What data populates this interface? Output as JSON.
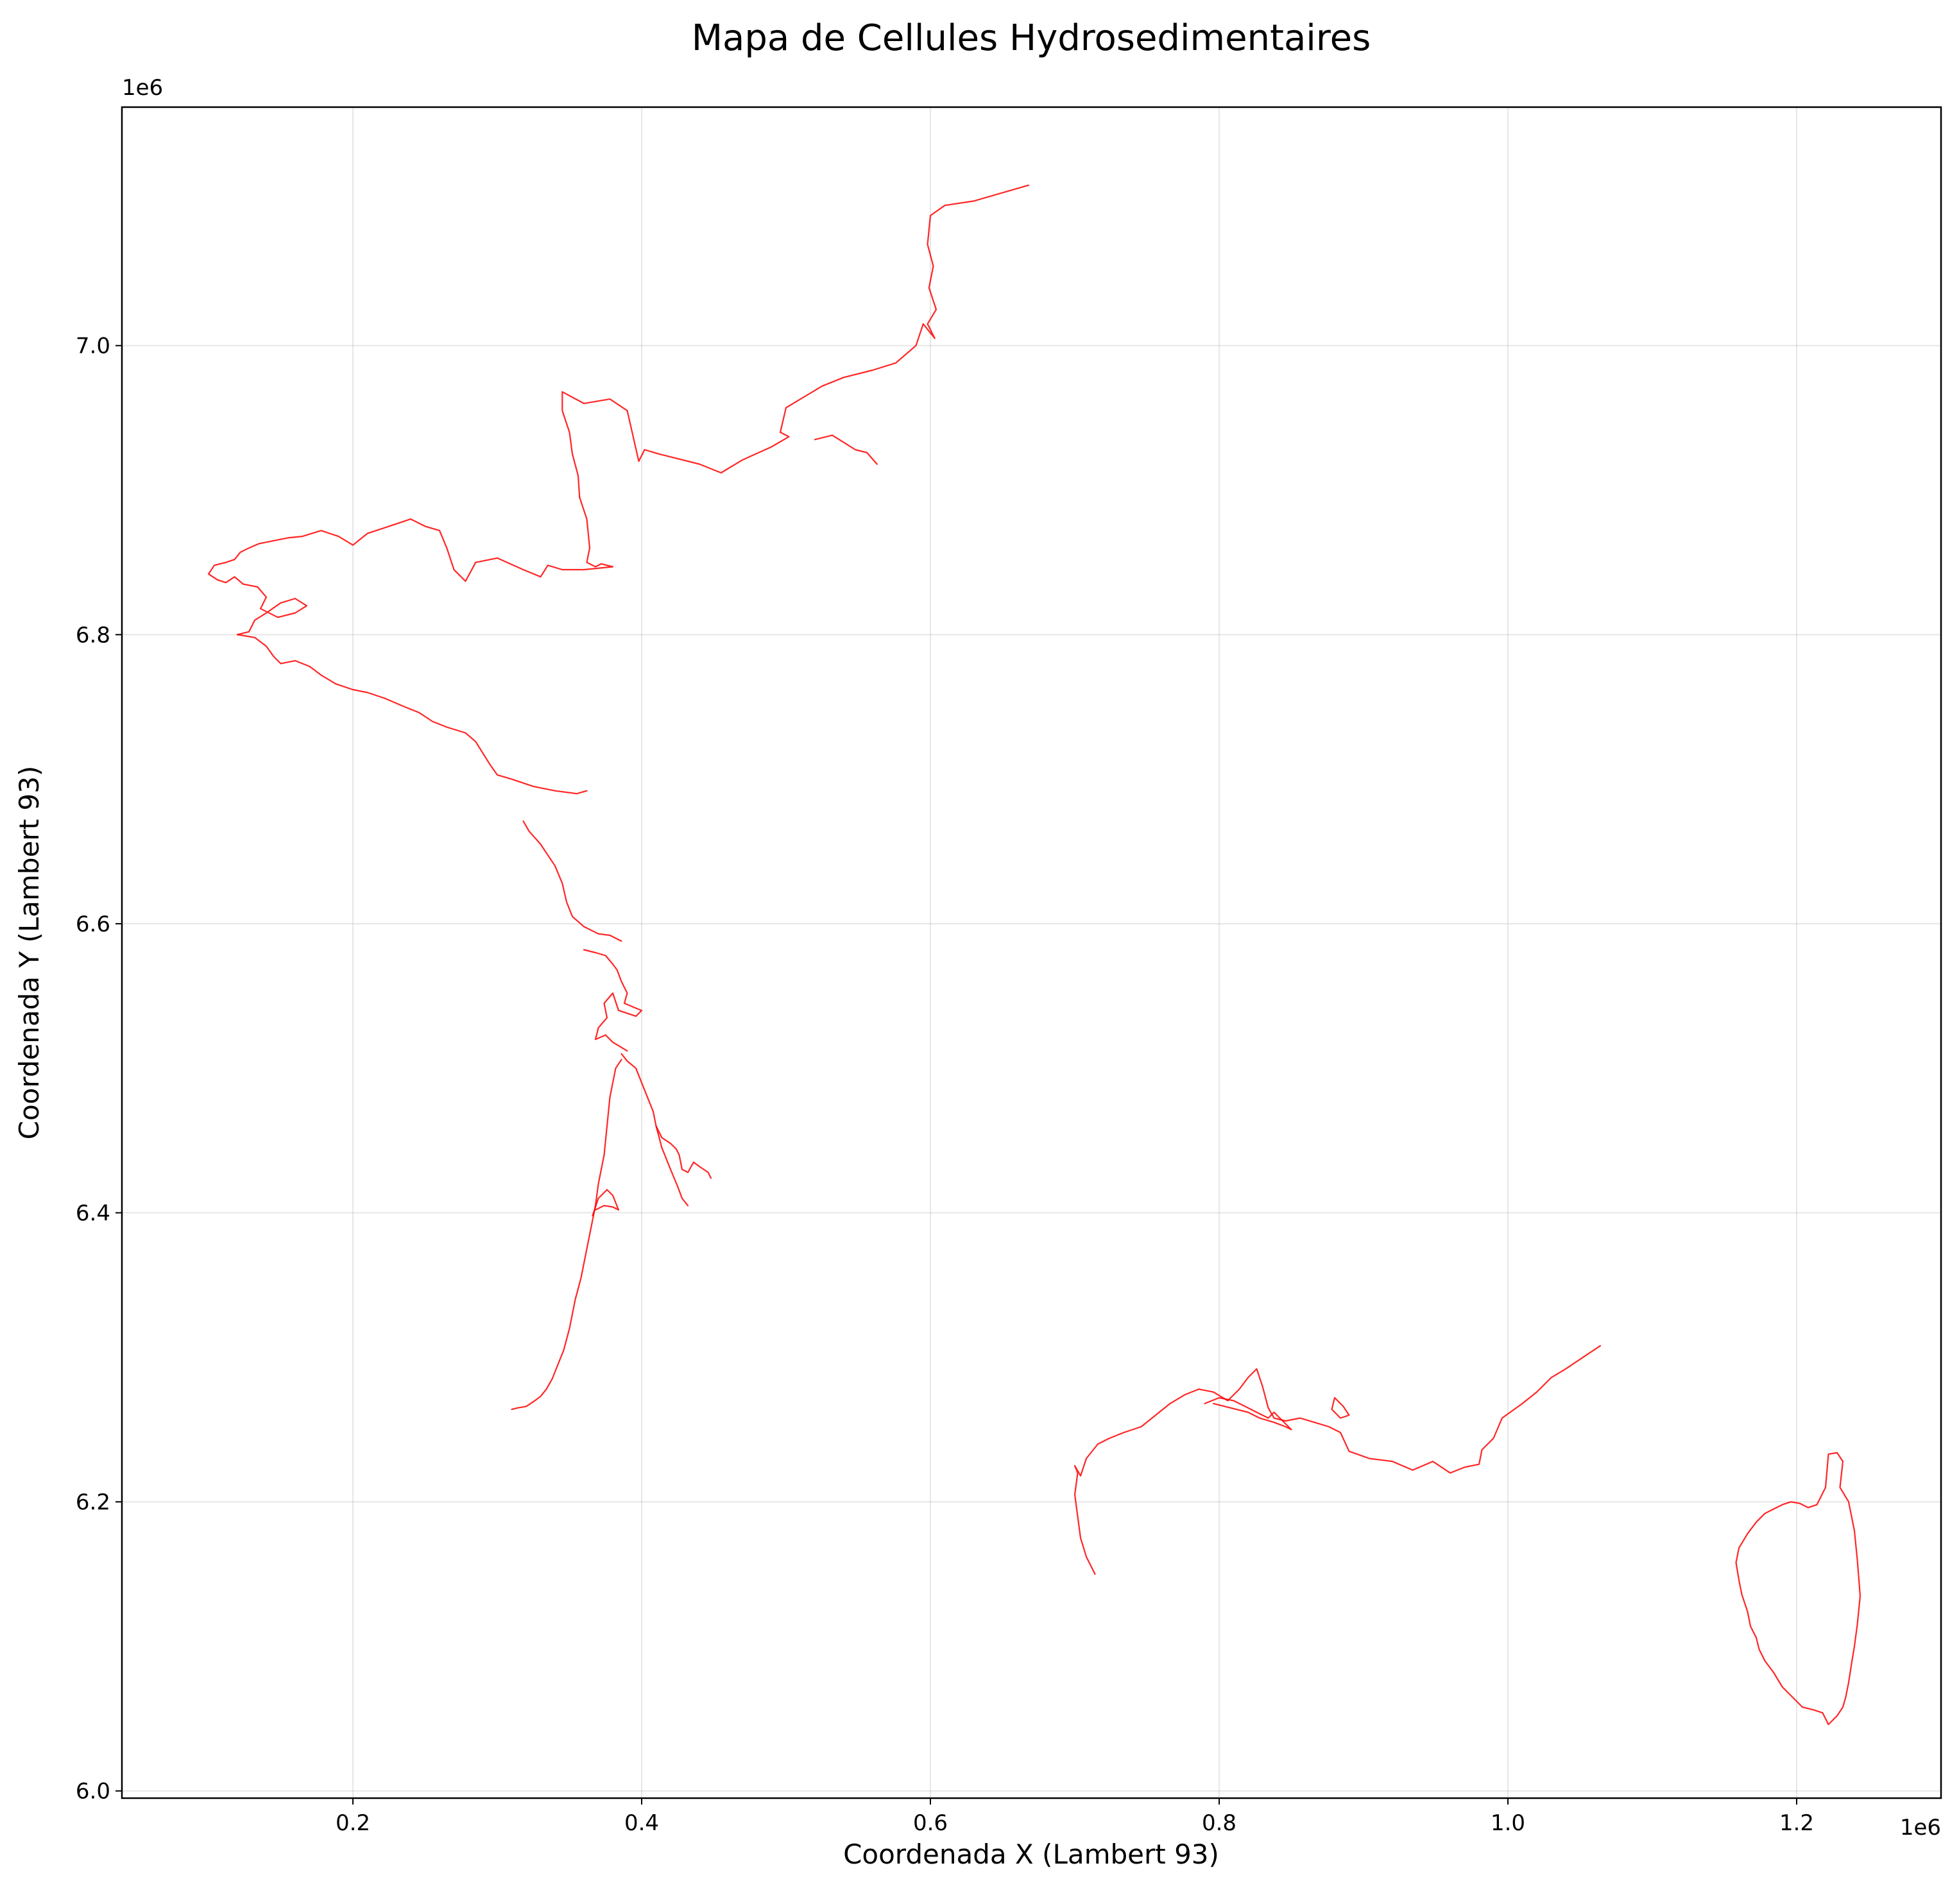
{
  "chart_data": {
    "type": "line",
    "title": "Mapa de Cellules Hydrosedimentaires",
    "xlabel": "Coordenada X (Lambert 93)",
    "ylabel": "Coordenada Y (Lambert 93)",
    "x_offset_label": "1e6",
    "y_offset_label": "1e6",
    "xlim": [
      40000,
      1300000
    ],
    "ylim": [
      5995000,
      7165000
    ],
    "x_ticks": [
      200000,
      400000,
      600000,
      800000,
      1000000,
      1200000
    ],
    "x_tick_labels": [
      "0.2",
      "0.4",
      "0.6",
      "0.8",
      "1.0",
      "1.2"
    ],
    "y_ticks": [
      6000000,
      6200000,
      6400000,
      6600000,
      6800000,
      7000000
    ],
    "y_tick_labels": [
      "6.0",
      "6.2",
      "6.4",
      "6.6",
      "6.8",
      "7.0"
    ],
    "grid": true,
    "line_color": "#ff0000",
    "series": [
      {
        "x": [
          668000,
          630000,
          610000,
          600000,
          598000,
          602000,
          599000,
          604000,
          598000,
          603000,
          595000,
          590000,
          576000,
          560000,
          540000,
          525000,
          510000,
          500000,
          496000,
          502000,
          490000,
          470000,
          455000,
          440000,
          420000,
          412000,
          402000,
          398000,
          390000,
          378000,
          360000,
          345000,
          345000,
          350000,
          352000,
          356000,
          357000
        ],
        "y": [
          7111000,
          7100000,
          7097000,
          7090000,
          7070000,
          7055000,
          7040000,
          7025000,
          7015000,
          7005000,
          7015000,
          7000000,
          6988000,
          6983000,
          6978000,
          6972000,
          6963000,
          6957000,
          6940000,
          6937000,
          6930000,
          6921000,
          6912000,
          6918000,
          6923000,
          6925000,
          6928000,
          6920000,
          6955000,
          6963000,
          6960000,
          6968000,
          6955000,
          6940000,
          6925000,
          6910000,
          6895000
        ]
      },
      {
        "x": [
          520000,
          532000,
          540000,
          548000,
          556000,
          563000
        ],
        "y": [
          6935000,
          6938000,
          6933000,
          6928000,
          6926000,
          6918000
        ]
      },
      {
        "x": [
          357000,
          362000,
          364000,
          362000,
          368000,
          372000,
          380000,
          360000,
          345000,
          335000,
          330000,
          318000,
          300000,
          285000,
          278000,
          270000,
          265000,
          260000,
          250000,
          240000,
          225000,
          210000,
          200000,
          190000,
          178000,
          165000,
          155000,
          145000,
          135000,
          128000,
          122000,
          118000,
          112000,
          104000,
          100000,
          106000,
          112000,
          118000,
          124000,
          134000,
          140000,
          136000,
          148000,
          160000,
          168000,
          160000,
          150000,
          140000,
          132000,
          128000,
          120000
        ],
        "y": [
          6895000,
          6880000,
          6860000,
          6850000,
          6847000,
          6849000,
          6847000,
          6845000,
          6845000,
          6848000,
          6840000,
          6845000,
          6853000,
          6850000,
          6837000,
          6845000,
          6860000,
          6872000,
          6875000,
          6880000,
          6875000,
          6870000,
          6862000,
          6868000,
          6872000,
          6868000,
          6867000,
          6865000,
          6863000,
          6860000,
          6857000,
          6852000,
          6850000,
          6848000,
          6842000,
          6838000,
          6836000,
          6840000,
          6835000,
          6833000,
          6826000,
          6818000,
          6812000,
          6815000,
          6820000,
          6825000,
          6822000,
          6815000,
          6810000,
          6802000,
          6800000
        ]
      },
      {
        "x": [
          120000,
          132000,
          140000,
          145000,
          150000,
          160000,
          170000,
          178000,
          188000,
          200000,
          210000,
          222000,
          236000,
          246000,
          255000,
          265000,
          278000,
          285000,
          290000,
          295000,
          300000,
          310000,
          325000,
          340000,
          355000,
          362000
        ],
        "y": [
          6800000,
          6798000,
          6792000,
          6785000,
          6780000,
          6782000,
          6778000,
          6772000,
          6766000,
          6762000,
          6760000,
          6756000,
          6750000,
          6746000,
          6740000,
          6736000,
          6732000,
          6726000,
          6718000,
          6710000,
          6703000,
          6700000,
          6695000,
          6692000,
          6690000,
          6692000
        ]
      },
      {
        "x": [
          318000,
          322000,
          330000,
          340000,
          345000,
          348000,
          352000,
          360000,
          370000,
          378000,
          382000,
          386000
        ],
        "y": [
          6671000,
          6664000,
          6655000,
          6640000,
          6628000,
          6615000,
          6605000,
          6598000,
          6593000,
          6592000,
          6590000,
          6588000
        ]
      },
      {
        "x": [
          360000,
          368000,
          375000,
          380000,
          383000,
          386000,
          390000,
          388000,
          395000,
          400000,
          396000,
          390000,
          384000,
          380000,
          374000,
          376000,
          370000,
          368000,
          375000,
          380000,
          385000,
          390000
        ],
        "y": [
          6582000,
          6580000,
          6578000,
          6572000,
          6568000,
          6560000,
          6552000,
          6545000,
          6542000,
          6540000,
          6536000,
          6538000,
          6540000,
          6552000,
          6545000,
          6535000,
          6528000,
          6520000,
          6523000,
          6518000,
          6515000,
          6512000
        ]
      },
      {
        "x": [
          386000,
          390000,
          396000,
          400000,
          404000,
          408000,
          410000,
          414000,
          420000,
          424000,
          426000,
          428000,
          432000,
          436000,
          440000,
          446000,
          448000
        ],
        "y": [
          6510000,
          6505000,
          6500000,
          6490000,
          6480000,
          6470000,
          6460000,
          6452000,
          6448000,
          6444000,
          6440000,
          6430000,
          6428000,
          6435000,
          6432000,
          6428000,
          6424000
        ]
      },
      {
        "x": [
          410000,
          414000,
          420000,
          425000,
          428000,
          432000
        ],
        "y": [
          6460000,
          6445000,
          6430000,
          6418000,
          6410000,
          6405000
        ]
      },
      {
        "x": [
          386000,
          382000,
          378000,
          376000,
          374000,
          370000,
          368000,
          366000,
          362000,
          358000,
          354000,
          350000,
          346000,
          342000,
          338000,
          334000,
          330000,
          326000,
          320000,
          314000,
          310000
        ],
        "y": [
          6506000,
          6500000,
          6480000,
          6460000,
          6440000,
          6420000,
          6405000,
          6395000,
          6375000,
          6355000,
          6340000,
          6320000,
          6305000,
          6295000,
          6285000,
          6278000,
          6273000,
          6270000,
          6266000,
          6265000,
          6264000
        ]
      },
      {
        "x": [
          366000,
          370000,
          376000,
          380000,
          384000,
          380000,
          374000,
          368000
        ],
        "y": [
          6398000,
          6410000,
          6416000,
          6412000,
          6402000,
          6404000,
          6405000,
          6402000
        ]
      },
      {
        "x": [
          714000,
          708000,
          704000,
          702000,
          700000,
          702000,
          700000,
          704000,
          708000,
          716000,
          724000,
          734000,
          746000,
          756000,
          766000,
          776000,
          786000,
          796000,
          806000,
          814000,
          820000,
          826000,
          830000,
          834000,
          838000,
          846000,
          856000,
          866000,
          876000,
          884000,
          890000,
          904000,
          920000,
          934000,
          948000,
          960000,
          970000,
          980000,
          982000,
          990000,
          996000,
          1010000,
          1020000,
          1030000,
          1040000,
          1052000,
          1064000
        ],
        "y": [
          6150000,
          6162000,
          6175000,
          6190000,
          6205000,
          6220000,
          6225000,
          6218000,
          6230000,
          6240000,
          6244000,
          6248000,
          6252000,
          6260000,
          6268000,
          6274000,
          6278000,
          6276000,
          6270000,
          6278000,
          6286000,
          6292000,
          6280000,
          6265000,
          6258000,
          6256000,
          6258000,
          6255000,
          6252000,
          6248000,
          6235000,
          6230000,
          6228000,
          6222000,
          6228000,
          6220000,
          6224000,
          6226000,
          6236000,
          6244000,
          6258000,
          6268000,
          6276000,
          6286000,
          6292000,
          6300000,
          6308000
        ]
      },
      {
        "x": [
          790000,
          800000,
          810000,
          818000,
          826000,
          834000,
          838000,
          844000,
          850000,
          846000,
          838000,
          828000,
          820000,
          812000,
          804000,
          796000
        ],
        "y": [
          6268000,
          6272000,
          6270000,
          6266000,
          6262000,
          6258000,
          6262000,
          6256000,
          6250000,
          6252000,
          6255000,
          6258000,
          6262000,
          6264000,
          6266000,
          6268000
        ]
      },
      {
        "x": [
          880000,
          886000,
          890000,
          884000,
          878000,
          880000
        ],
        "y": [
          6272000,
          6266000,
          6260000,
          6258000,
          6264000,
          6272000
        ]
      },
      {
        "x": [
          1222000,
          1228000,
          1232000,
          1230000,
          1236000,
          1240000,
          1242000,
          1244000,
          1242000,
          1240000,
          1238000,
          1236000,
          1234000,
          1232000,
          1228000,
          1224000,
          1222000,
          1218000,
          1212000,
          1204000,
          1198000,
          1190000,
          1184000,
          1178000,
          1174000,
          1172000,
          1168000,
          1166000,
          1162000,
          1160000,
          1158000,
          1160000,
          1166000,
          1172000,
          1178000,
          1184000,
          1190000,
          1196000,
          1202000,
          1208000,
          1214000,
          1220000,
          1222000
        ],
        "y": [
          6233000,
          6234000,
          6228000,
          6210000,
          6200000,
          6180000,
          6160000,
          6135000,
          6115000,
          6100000,
          6088000,
          6075000,
          6065000,
          6058000,
          6052000,
          6048000,
          6046000,
          6054000,
          6056000,
          6058000,
          6064000,
          6072000,
          6082000,
          6090000,
          6098000,
          6106000,
          6114000,
          6124000,
          6136000,
          6146000,
          6158000,
          6168000,
          6178000,
          6186000,
          6192000,
          6195000,
          6198000,
          6200000,
          6199000,
          6196000,
          6198000,
          6210000,
          6233000
        ]
      }
    ]
  }
}
